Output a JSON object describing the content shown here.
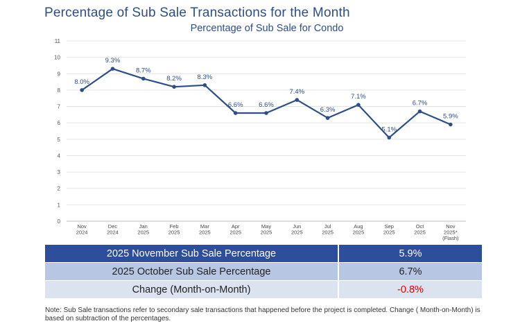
{
  "page_title": "Percentage of Sub Sale Transactions for the Month",
  "chart_data": {
    "type": "line",
    "title": "Percentage of Sub Sale for Condo",
    "xlabel": "",
    "ylabel": "",
    "ylim": [
      0,
      11
    ],
    "yticks": [
      "0",
      "1",
      "2",
      "3",
      "4",
      "5",
      "6",
      "7",
      "8",
      "9",
      "10",
      "11"
    ],
    "grid": true,
    "categories": [
      [
        "Nov",
        "2024"
      ],
      [
        "Dec",
        "2024"
      ],
      [
        "Jan",
        "2025"
      ],
      [
        "Feb",
        "2025"
      ],
      [
        "Mar",
        "2025"
      ],
      [
        "Apr",
        "2025"
      ],
      [
        "May",
        "2025"
      ],
      [
        "Jun",
        "2025"
      ],
      [
        "Jul",
        "2025"
      ],
      [
        "Aug",
        "2025"
      ],
      [
        "Sep",
        "2025"
      ],
      [
        "Oct",
        "2025"
      ],
      [
        "Nov",
        "2025*",
        "(Flash)"
      ]
    ],
    "values": [
      8.0,
      9.3,
      8.7,
      8.2,
      8.3,
      6.6,
      6.6,
      7.4,
      6.3,
      7.1,
      5.1,
      6.7,
      5.9
    ],
    "data_labels": [
      "8.0%",
      "9.3%",
      "8.7%",
      "8.2%",
      "8.3%",
      "6.6%",
      "6.6%",
      "7.4%",
      "6.3%",
      "7.1%",
      "5.1%",
      "6.7%",
      "5.9%"
    ],
    "line_color": "#2d4e86"
  },
  "summary": {
    "rows": [
      {
        "label": "2025 November Sub Sale Percentage",
        "value": "5.9%"
      },
      {
        "label": "2025 October Sub Sale Percentage",
        "value": "6.7%"
      },
      {
        "label": "Change (Month-on-Month)",
        "value": "-0.8%"
      }
    ]
  },
  "footnote": "Note: Sub Sale transactions refer to secondary sale transactions that happened before the project is completed. Change ( Month-on-Month) is based on subtraction of the percentages."
}
